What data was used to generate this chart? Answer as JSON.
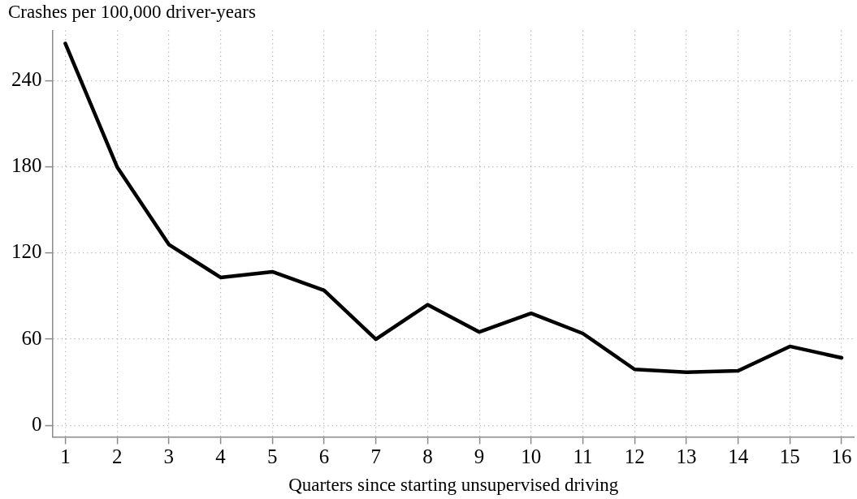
{
  "chart_data": {
    "type": "line",
    "ylabel": "Crashes per 100,000 driver-years",
    "xlabel": "Quarters since starting unsupervised driving",
    "x": [
      1,
      2,
      3,
      4,
      5,
      6,
      7,
      8,
      9,
      10,
      11,
      12,
      13,
      14,
      15,
      16
    ],
    "values": [
      266,
      180,
      126,
      103,
      107,
      94,
      60,
      84,
      65,
      78,
      64,
      39,
      37,
      38,
      55,
      47
    ],
    "color": "#000000",
    "marker": "none",
    "xlim": [
      0.75,
      16.25
    ],
    "ylim": [
      -8,
      275
    ],
    "xticks": [
      1,
      2,
      3,
      4,
      5,
      6,
      7,
      8,
      9,
      10,
      11,
      12,
      13,
      14,
      15,
      16
    ],
    "yticks": [
      0,
      60,
      120,
      180,
      240
    ],
    "grid": true
  }
}
